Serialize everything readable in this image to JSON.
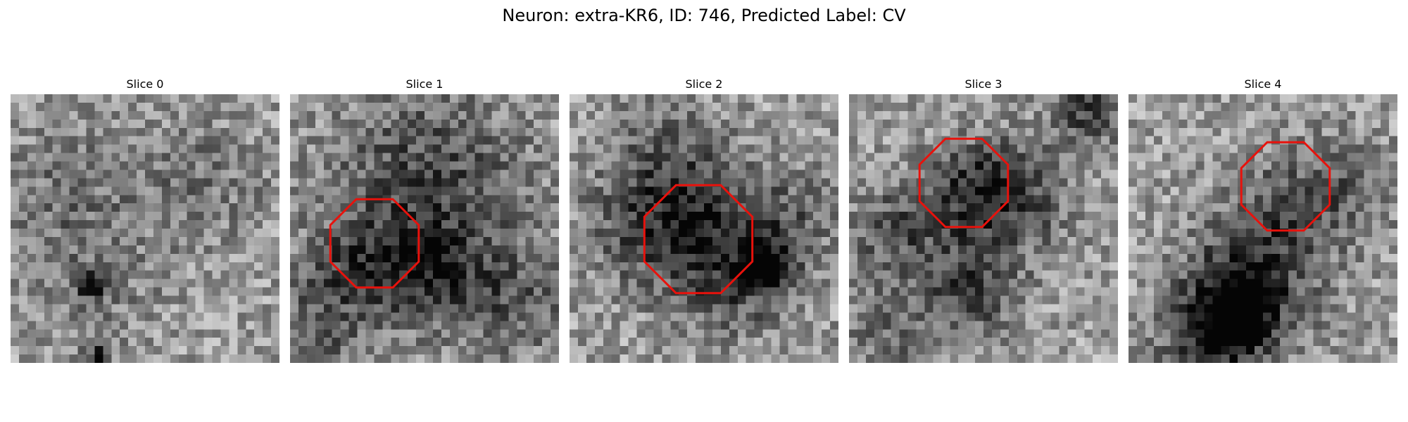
{
  "figure": {
    "suptitle": "Neuron: extra-KR6, ID: 746, Predicted Label: CV"
  },
  "panels": [
    {
      "title": "Slice 0",
      "has_outline": false
    },
    {
      "title": "Slice 1",
      "has_outline": true
    },
    {
      "title": "Slice 2",
      "has_outline": true
    },
    {
      "title": "Slice 3",
      "has_outline": true
    },
    {
      "title": "Slice 4",
      "has_outline": true
    }
  ],
  "colors": {
    "outline": "#e8120c",
    "background": "#ffffff"
  }
}
